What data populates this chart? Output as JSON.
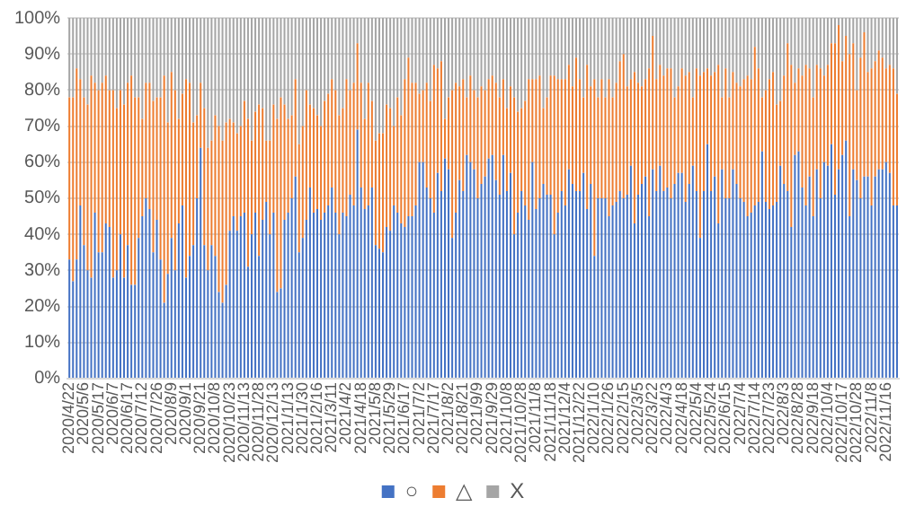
{
  "chart_data": {
    "type": "bar",
    "stacked": true,
    "grid": "y",
    "legend": "bottom",
    "categories": [
      "2020/4/22",
      null,
      null,
      null,
      "2020/5/6",
      null,
      null,
      null,
      "2020/5/17",
      null,
      null,
      null,
      "2020/6/7",
      null,
      null,
      null,
      "2020/6/17",
      null,
      null,
      null,
      "2020/7/12",
      null,
      null,
      null,
      "2020/7/26",
      null,
      null,
      null,
      "2020/8/9",
      null,
      null,
      null,
      "2020/9/1",
      null,
      null,
      null,
      "2020/9/21",
      null,
      null,
      null,
      "2020/10/8",
      null,
      null,
      null,
      "2020/10/23",
      null,
      null,
      null,
      "2020/11/13",
      null,
      null,
      null,
      "2020/11/28",
      null,
      null,
      null,
      "2020/12/13",
      null,
      null,
      null,
      "2021/1/13",
      null,
      null,
      null,
      "2021/1/30",
      null,
      null,
      null,
      "2021/2/16",
      null,
      null,
      null,
      "2021/3/11",
      null,
      null,
      null,
      "2021/4/2",
      null,
      null,
      null,
      "2021/4/18",
      null,
      null,
      null,
      "2021/5/8",
      null,
      null,
      null,
      "2021/5/29",
      null,
      null,
      null,
      "2021/6/17",
      null,
      null,
      null,
      "2021/7/2",
      null,
      null,
      null,
      "2021/7/17",
      null,
      null,
      null,
      "2021/8/2",
      null,
      null,
      null,
      "2021/8/21",
      null,
      null,
      null,
      "2021/9/9",
      null,
      null,
      null,
      "2021/9/29",
      null,
      null,
      null,
      "2021/10/8",
      null,
      null,
      null,
      "2021/10/28",
      null,
      null,
      null,
      "2021/11/8",
      null,
      null,
      null,
      "2021/11/18",
      null,
      null,
      null,
      "2021/12/4",
      null,
      null,
      null,
      "2021/12/22",
      null,
      null,
      null,
      "2022/1/10",
      null,
      null,
      null,
      "2022/1/26",
      null,
      null,
      null,
      "2022/2/15",
      null,
      null,
      null,
      "2022/3/5",
      null,
      null,
      null,
      "2022/3/22",
      null,
      null,
      null,
      "2022/4/3",
      null,
      null,
      null,
      "2022/4/18",
      null,
      null,
      null,
      "2022/5/4",
      null,
      null,
      null,
      "2022/5/24",
      null,
      null,
      null,
      "2022/6/15",
      null,
      null,
      null,
      "2022/7/4",
      null,
      null,
      null,
      "2022/7/14",
      null,
      null,
      null,
      "2022/7/23",
      null,
      null,
      null,
      "2022/8/3",
      null,
      null,
      null,
      "2022/8/28",
      null,
      null,
      null,
      "2022/9/18",
      null,
      null,
      null,
      "2022/10/4",
      null,
      null,
      null,
      "2022/10/17",
      null,
      null,
      null,
      "2022/10/28",
      null,
      null,
      null,
      "2022/11/8",
      null,
      null,
      null,
      "2022/11/16",
      null,
      null,
      null
    ],
    "ylim": [
      0,
      100
    ],
    "yticks": [
      {
        "value": 0,
        "label": "0%"
      },
      {
        "value": 10,
        "label": "10%"
      },
      {
        "value": 20,
        "label": "20%"
      },
      {
        "value": 30,
        "label": "30%"
      },
      {
        "value": 40,
        "label": "40%"
      },
      {
        "value": 50,
        "label": "50%"
      },
      {
        "value": 60,
        "label": "60%"
      },
      {
        "value": 70,
        "label": "70%"
      },
      {
        "value": 80,
        "label": "80%"
      },
      {
        "value": 90,
        "label": "90%"
      },
      {
        "value": 100,
        "label": "100%"
      }
    ],
    "series": [
      {
        "name": "○",
        "color": "#4472c4",
        "values": [
          33,
          27,
          33,
          48,
          37,
          30,
          28,
          46,
          35,
          35,
          43,
          42,
          28,
          30,
          40,
          28,
          37,
          26,
          26,
          39,
          45,
          50,
          47,
          35,
          44,
          33,
          21,
          29,
          39,
          30,
          43,
          48,
          28,
          34,
          37,
          50,
          64,
          37,
          30,
          37,
          34,
          24,
          21,
          26,
          41,
          45,
          41,
          45,
          46,
          31,
          40,
          46,
          34,
          44,
          49,
          40,
          46,
          24,
          25,
          44,
          46,
          50,
          56,
          35,
          39,
          44,
          53,
          46,
          47,
          44,
          46,
          48,
          53,
          46,
          40,
          46,
          45,
          51,
          48,
          69,
          53,
          47,
          48,
          53,
          37,
          36,
          35,
          42,
          41,
          48,
          46,
          43,
          42,
          45,
          45,
          48,
          60,
          60,
          53,
          50,
          46,
          57,
          52,
          61,
          58,
          39,
          46,
          55,
          52,
          62,
          60,
          58,
          50,
          54,
          56,
          61,
          62,
          55,
          51,
          62,
          52,
          57,
          40,
          46,
          52,
          48,
          44,
          60,
          47,
          50,
          54,
          51,
          51,
          40,
          46,
          52,
          48,
          58,
          54,
          52,
          52,
          57,
          47,
          54,
          34,
          50,
          50,
          50,
          45,
          48,
          49,
          52,
          50,
          51,
          59,
          43,
          51,
          54,
          56,
          45,
          58,
          52,
          59,
          52,
          53,
          50,
          54,
          57,
          57,
          49,
          54,
          59,
          52,
          39,
          52,
          65,
          52,
          56,
          43,
          58,
          50,
          50,
          58,
          54,
          50,
          49,
          45,
          46,
          48,
          49,
          63,
          49,
          47,
          48,
          49,
          59,
          54,
          52,
          42,
          62,
          63,
          53,
          48,
          56,
          45,
          58,
          50,
          60,
          59,
          65,
          51,
          58,
          62,
          66,
          45,
          58,
          55,
          50,
          56,
          56,
          48,
          56,
          58,
          58,
          60,
          57,
          48,
          48
        ]
      },
      {
        "name": "△",
        "color": "#ed7d31",
        "values": [
          45,
          51,
          53,
          35,
          41,
          46,
          56,
          36,
          45,
          47,
          41,
          38,
          52,
          45,
          40,
          48,
          45,
          58,
          52,
          39,
          27,
          32,
          35,
          42,
          34,
          45,
          63,
          42,
          46,
          50,
          29,
          31,
          55,
          48,
          34,
          23,
          18,
          38,
          34,
          29,
          39,
          46,
          45,
          45,
          31,
          26,
          27,
          25,
          31,
          41,
          26,
          28,
          42,
          31,
          17,
          26,
          30,
          48,
          53,
          32,
          26,
          23,
          27,
          30,
          31,
          36,
          23,
          29,
          26,
          26,
          31,
          31,
          30,
          34,
          33,
          29,
          38,
          29,
          34,
          24,
          29,
          25,
          34,
          24,
          29,
          32,
          33,
          34,
          34,
          22,
          32,
          30,
          41,
          44,
          37,
          34,
          19,
          20,
          29,
          27,
          41,
          29,
          36,
          11,
          20,
          41,
          36,
          26,
          31,
          16,
          24,
          22,
          28,
          27,
          24,
          22,
          22,
          27,
          27,
          21,
          23,
          24,
          38,
          28,
          23,
          29,
          39,
          23,
          36,
          34,
          21,
          27,
          33,
          44,
          37,
          31,
          35,
          29,
          27,
          37,
          31,
          21,
          40,
          27,
          49,
          28,
          33,
          28,
          38,
          30,
          33,
          36,
          40,
          30,
          24,
          42,
          31,
          27,
          27,
          41,
          37,
          31,
          28,
          32,
          33,
          36,
          24,
          24,
          29,
          35,
          31,
          19,
          34,
          45,
          33,
          21,
          32,
          29,
          44,
          20,
          36,
          28,
          27,
          28,
          31,
          34,
          39,
          37,
          44,
          37,
          15,
          31,
          36,
          37,
          27,
          18,
          30,
          41,
          45,
          20,
          23,
          31,
          39,
          30,
          33,
          29,
          36,
          24,
          28,
          28,
          42,
          40,
          26,
          29,
          45,
          35,
          25,
          39,
          40,
          29,
          38,
          32,
          33,
          31,
          26,
          30,
          38,
          31
        ]
      },
      {
        "name": "X",
        "color": "#a5a5a5",
        "values": [
          22,
          22,
          14,
          17,
          22,
          24,
          16,
          18,
          20,
          18,
          16,
          20,
          20,
          25,
          20,
          24,
          18,
          16,
          22,
          22,
          28,
          18,
          18,
          23,
          22,
          22,
          16,
          29,
          15,
          20,
          28,
          21,
          17,
          18,
          29,
          27,
          18,
          25,
          36,
          34,
          27,
          30,
          34,
          29,
          28,
          29,
          32,
          30,
          23,
          28,
          34,
          26,
          24,
          25,
          34,
          34,
          24,
          28,
          22,
          24,
          28,
          27,
          17,
          35,
          30,
          20,
          24,
          25,
          27,
          30,
          23,
          21,
          17,
          20,
          27,
          25,
          17,
          20,
          18,
          7,
          18,
          28,
          18,
          23,
          34,
          32,
          32,
          24,
          25,
          30,
          22,
          27,
          17,
          11,
          18,
          18,
          21,
          20,
          18,
          23,
          13,
          14,
          12,
          28,
          22,
          20,
          18,
          19,
          17,
          22,
          16,
          20,
          22,
          19,
          20,
          17,
          16,
          18,
          22,
          17,
          25,
          19,
          22,
          26,
          25,
          23,
          17,
          17,
          17,
          16,
          25,
          22,
          16,
          16,
          17,
          17,
          17,
          13,
          19,
          11,
          17,
          22,
          13,
          19,
          17,
          22,
          17,
          22,
          17,
          22,
          18,
          12,
          10,
          19,
          17,
          15,
          18,
          19,
          17,
          14,
          5,
          17,
          13,
          16,
          14,
          14,
          22,
          19,
          14,
          16,
          15,
          22,
          14,
          16,
          15,
          14,
          16,
          15,
          13,
          22,
          14,
          22,
          15,
          18,
          19,
          17,
          16,
          17,
          8,
          14,
          22,
          20,
          17,
          15,
          24,
          23,
          16,
          7,
          13,
          18,
          14,
          16,
          13,
          14,
          22,
          13,
          14,
          16,
          13,
          7,
          7,
          2,
          12,
          5,
          10,
          7,
          20,
          11,
          4,
          15,
          14,
          12,
          9,
          11,
          14,
          13,
          14,
          21
        ]
      }
    ]
  }
}
